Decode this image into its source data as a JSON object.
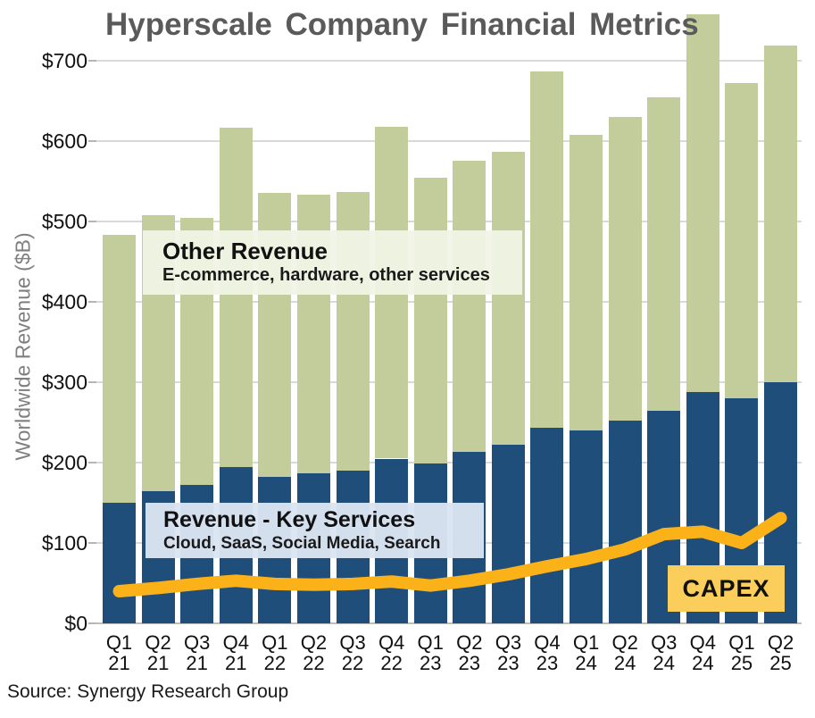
{
  "title": "Hyperscale Company Financial Metrics",
  "source_text": "Source: Synergy Research Group",
  "annotations": {
    "other_revenue_title": "Other Revenue",
    "other_revenue_subtitle": "E-commerce, hardware, other services",
    "key_services_title": "Revenue - Key Services",
    "key_services_subtitle": "Cloud, SaaS, Social Media, Search",
    "capex_label": "CAPEX"
  },
  "colors": {
    "key_services_bar": "#1F4E7B",
    "other_revenue_bar": "#C3CD9B",
    "capex_line": "#FBB118",
    "capex_box_bg": "#FBCE5C",
    "title_text": "#5A5A5A",
    "gridline": "#D9D9D9",
    "baseline": "#BDBDBD"
  },
  "chart_data": {
    "type": "bar",
    "stacked": true,
    "title": "Hyperscale Company Financial Metrics",
    "ylabel": "Worldwide Revenue ($B)",
    "xlabel": "",
    "ylim": [
      0,
      775
    ],
    "grid": "horizontal",
    "legend_position": "none",
    "y_tick_labels": [
      "$0",
      "$100",
      "$200",
      "$300",
      "$400",
      "$500",
      "$600",
      "$700"
    ],
    "y_tick_values": [
      0,
      100,
      200,
      300,
      400,
      500,
      600,
      700
    ],
    "categories": [
      "Q1 21",
      "Q2 21",
      "Q3 21",
      "Q4 21",
      "Q1 22",
      "Q2 22",
      "Q3 22",
      "Q4 22",
      "Q1 23",
      "Q2 23",
      "Q3 23",
      "Q4 23",
      "Q1 24",
      "Q2 24",
      "Q3 24",
      "Q4 24",
      "Q1 25",
      "Q2 25"
    ],
    "series": [
      {
        "name": "Revenue - Key Services (Cloud, SaaS, Social Media, Search)",
        "color": "#1F4E7B",
        "values": [
          150,
          164,
          172,
          194,
          182,
          187,
          190,
          205,
          199,
          213,
          222,
          243,
          240,
          252,
          265,
          288,
          280,
          300
        ]
      },
      {
        "name": "Other Revenue (E-commerce, hardware, other services)",
        "color": "#C3CD9B",
        "values": [
          333,
          344,
          333,
          423,
          354,
          346,
          347,
          413,
          355,
          363,
          365,
          444,
          368,
          378,
          390,
          470,
          392,
          419
        ]
      }
    ],
    "stack_totals": [
      483,
      508,
      505,
      617,
      536,
      533,
      537,
      618,
      554,
      576,
      587,
      687,
      608,
      630,
      655,
      758,
      672,
      719
    ],
    "line_series": [
      {
        "name": "CAPEX",
        "color": "#FBB118",
        "values": [
          40,
          44,
          49,
          53,
          49,
          48,
          49,
          52,
          47,
          53,
          61,
          71,
          80,
          92,
          111,
          114,
          100,
          131
        ]
      }
    ]
  }
}
